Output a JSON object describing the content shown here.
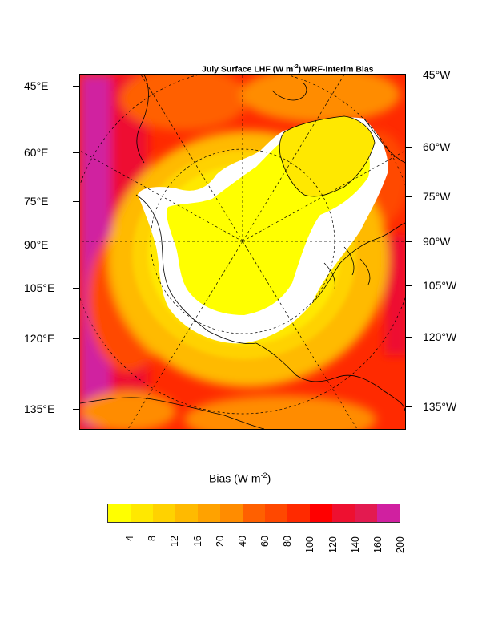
{
  "map": {
    "title_prefix": "July Surface LHF (W m",
    "title_sup": "-2",
    "title_suffix": ") WRF-Interim Bias",
    "left_labels": [
      "45°E",
      "60°E",
      "75°E",
      "90°E",
      "105°E",
      "120°E",
      "135°E"
    ],
    "right_labels": [
      "45°W",
      "60°W",
      "75°W",
      "90°W",
      "105°W",
      "120°W",
      "135°W"
    ],
    "projection": "polar stereographic (Arctic)"
  },
  "colorbar": {
    "title_prefix": "Bias (W m",
    "title_sup": "-2",
    "title_suffix": ")",
    "levels": [
      "4",
      "8",
      "12",
      "16",
      "20",
      "40",
      "60",
      "80",
      "100",
      "120",
      "140",
      "160",
      "200"
    ],
    "colors": [
      "#ffff00",
      "#ffe800",
      "#ffd200",
      "#ffba00",
      "#ffa200",
      "#ff8c00",
      "#ff6000",
      "#ff4800",
      "#ff2a00",
      "#ff0000",
      "#ee1030",
      "#e31a50",
      "#d020a0"
    ]
  }
}
